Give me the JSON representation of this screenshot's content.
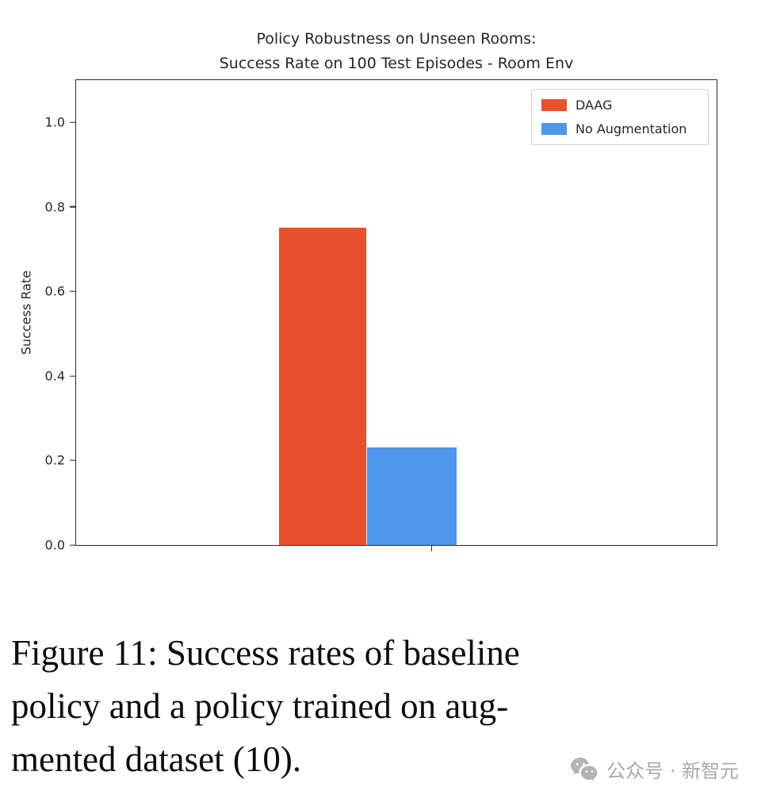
{
  "chart_data": {
    "type": "bar",
    "title_lines": [
      "Policy Robustness on Unseen Rooms:",
      "Success Rate on 100 Test Episodes - Room Env"
    ],
    "xlabel": "",
    "ylabel": "Success Rate",
    "yticks": [
      0.0,
      0.2,
      0.4,
      0.6,
      0.8,
      1.0
    ],
    "ylim": [
      0,
      1.1
    ],
    "grid": false,
    "legend_position": "upper right",
    "series": [
      {
        "name": "DAAG",
        "value": 0.75,
        "color": "#e8502b"
      },
      {
        "name": "No Augmentation",
        "value": 0.23,
        "color": "#4d96eb"
      }
    ]
  },
  "caption": {
    "lines": [
      "Figure 11: Success rates of baseline",
      "policy and a policy trained on aug-",
      "mented dataset (10)."
    ]
  },
  "watermark": {
    "icon": "wechat-icon",
    "text": "公众号 · 新智元"
  }
}
